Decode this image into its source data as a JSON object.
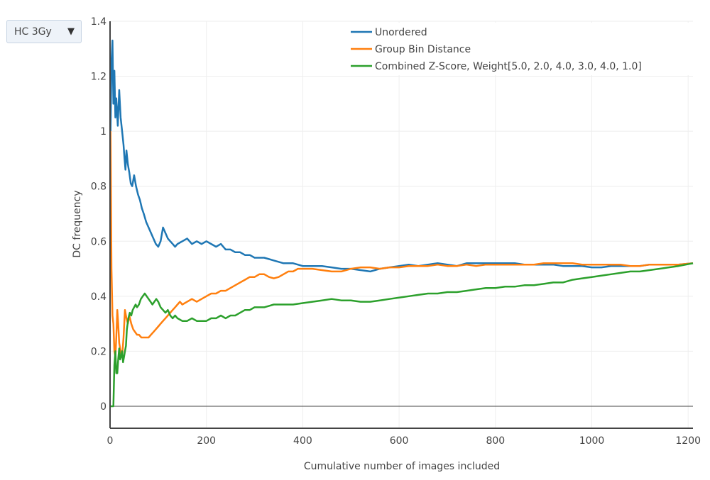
{
  "dropdown": {
    "selected": "HC 3Gy",
    "arrow_icon": "triangle-down-icon"
  },
  "chart_data": {
    "type": "line",
    "title": "",
    "xlabel": "Cumulative number of images included",
    "ylabel": "DC frequency",
    "xlim": [
      0,
      1210
    ],
    "ylim": [
      -0.08,
      1.4
    ],
    "xticks": [
      "0",
      "200",
      "400",
      "600",
      "800",
      "1000",
      "1200"
    ],
    "yticks": [
      "0",
      "0.2",
      "0.4",
      "0.6",
      "0.8",
      "1",
      "1.2",
      "1.4"
    ],
    "grid": true,
    "legend_position": "top-right",
    "series": [
      {
        "name": "Unordered",
        "color": "#1f77b4",
        "points": [
          [
            1,
            1.0
          ],
          [
            3,
            1.25
          ],
          [
            5,
            1.33
          ],
          [
            7,
            1.1
          ],
          [
            9,
            1.22
          ],
          [
            11,
            1.05
          ],
          [
            13,
            1.12
          ],
          [
            16,
            1.02
          ],
          [
            19,
            1.15
          ],
          [
            22,
            1.05
          ],
          [
            25,
            1.0
          ],
          [
            28,
            0.95
          ],
          [
            30,
            0.9
          ],
          [
            32,
            0.86
          ],
          [
            34,
            0.93
          ],
          [
            37,
            0.88
          ],
          [
            40,
            0.85
          ],
          [
            43,
            0.81
          ],
          [
            46,
            0.8
          ],
          [
            50,
            0.84
          ],
          [
            54,
            0.8
          ],
          [
            58,
            0.77
          ],
          [
            62,
            0.75
          ],
          [
            66,
            0.72
          ],
          [
            70,
            0.7
          ],
          [
            75,
            0.67
          ],
          [
            80,
            0.65
          ],
          [
            85,
            0.63
          ],
          [
            90,
            0.61
          ],
          [
            95,
            0.59
          ],
          [
            100,
            0.58
          ],
          [
            105,
            0.6
          ],
          [
            110,
            0.65
          ],
          [
            115,
            0.63
          ],
          [
            120,
            0.61
          ],
          [
            125,
            0.6
          ],
          [
            130,
            0.59
          ],
          [
            135,
            0.58
          ],
          [
            140,
            0.59
          ],
          [
            150,
            0.6
          ],
          [
            160,
            0.61
          ],
          [
            170,
            0.59
          ],
          [
            180,
            0.6
          ],
          [
            190,
            0.59
          ],
          [
            200,
            0.6
          ],
          [
            210,
            0.59
          ],
          [
            220,
            0.58
          ],
          [
            230,
            0.59
          ],
          [
            240,
            0.57
          ],
          [
            250,
            0.57
          ],
          [
            260,
            0.56
          ],
          [
            270,
            0.56
          ],
          [
            280,
            0.55
          ],
          [
            290,
            0.55
          ],
          [
            300,
            0.54
          ],
          [
            320,
            0.54
          ],
          [
            340,
            0.53
          ],
          [
            360,
            0.52
          ],
          [
            380,
            0.52
          ],
          [
            400,
            0.51
          ],
          [
            420,
            0.51
          ],
          [
            440,
            0.51
          ],
          [
            460,
            0.505
          ],
          [
            480,
            0.5
          ],
          [
            500,
            0.5
          ],
          [
            520,
            0.495
          ],
          [
            540,
            0.49
          ],
          [
            560,
            0.5
          ],
          [
            580,
            0.505
          ],
          [
            600,
            0.51
          ],
          [
            620,
            0.515
          ],
          [
            640,
            0.51
          ],
          [
            660,
            0.515
          ],
          [
            680,
            0.52
          ],
          [
            700,
            0.515
          ],
          [
            720,
            0.51
          ],
          [
            740,
            0.52
          ],
          [
            760,
            0.52
          ],
          [
            780,
            0.52
          ],
          [
            800,
            0.52
          ],
          [
            820,
            0.52
          ],
          [
            840,
            0.52
          ],
          [
            860,
            0.515
          ],
          [
            880,
            0.515
          ],
          [
            900,
            0.515
          ],
          [
            920,
            0.515
          ],
          [
            940,
            0.51
          ],
          [
            960,
            0.51
          ],
          [
            980,
            0.51
          ],
          [
            1000,
            0.505
          ],
          [
            1020,
            0.505
          ],
          [
            1040,
            0.51
          ],
          [
            1060,
            0.51
          ],
          [
            1080,
            0.51
          ],
          [
            1100,
            0.51
          ],
          [
            1120,
            0.515
          ],
          [
            1140,
            0.515
          ],
          [
            1160,
            0.515
          ],
          [
            1180,
            0.515
          ],
          [
            1210,
            0.52
          ]
        ]
      },
      {
        "name": "Group Bin Distance",
        "color": "#ff7f0e",
        "points": [
          [
            1,
            1.0
          ],
          [
            3,
            0.5
          ],
          [
            5,
            0.33
          ],
          [
            7,
            0.3
          ],
          [
            9,
            0.2
          ],
          [
            11,
            0.18
          ],
          [
            13,
            0.25
          ],
          [
            15,
            0.35
          ],
          [
            17,
            0.3
          ],
          [
            19,
            0.23
          ],
          [
            22,
            0.2
          ],
          [
            25,
            0.18
          ],
          [
            28,
            0.25
          ],
          [
            31,
            0.35
          ],
          [
            34,
            0.32
          ],
          [
            37,
            0.3
          ],
          [
            40,
            0.33
          ],
          [
            44,
            0.3
          ],
          [
            48,
            0.28
          ],
          [
            52,
            0.27
          ],
          [
            56,
            0.26
          ],
          [
            60,
            0.26
          ],
          [
            65,
            0.25
          ],
          [
            70,
            0.25
          ],
          [
            75,
            0.25
          ],
          [
            80,
            0.25
          ],
          [
            85,
            0.26
          ],
          [
            90,
            0.27
          ],
          [
            95,
            0.28
          ],
          [
            100,
            0.29
          ],
          [
            105,
            0.3
          ],
          [
            110,
            0.31
          ],
          [
            115,
            0.32
          ],
          [
            120,
            0.33
          ],
          [
            125,
            0.34
          ],
          [
            130,
            0.35
          ],
          [
            135,
            0.36
          ],
          [
            140,
            0.37
          ],
          [
            145,
            0.38
          ],
          [
            150,
            0.37
          ],
          [
            160,
            0.38
          ],
          [
            170,
            0.39
          ],
          [
            180,
            0.38
          ],
          [
            190,
            0.39
          ],
          [
            200,
            0.4
          ],
          [
            210,
            0.41
          ],
          [
            220,
            0.41
          ],
          [
            230,
            0.42
          ],
          [
            240,
            0.42
          ],
          [
            250,
            0.43
          ],
          [
            260,
            0.44
          ],
          [
            270,
            0.45
          ],
          [
            280,
            0.46
          ],
          [
            290,
            0.47
          ],
          [
            300,
            0.47
          ],
          [
            310,
            0.48
          ],
          [
            320,
            0.48
          ],
          [
            330,
            0.47
          ],
          [
            340,
            0.465
          ],
          [
            350,
            0.47
          ],
          [
            360,
            0.48
          ],
          [
            370,
            0.49
          ],
          [
            380,
            0.49
          ],
          [
            390,
            0.5
          ],
          [
            400,
            0.5
          ],
          [
            420,
            0.5
          ],
          [
            440,
            0.495
          ],
          [
            460,
            0.49
          ],
          [
            480,
            0.49
          ],
          [
            500,
            0.5
          ],
          [
            520,
            0.505
          ],
          [
            540,
            0.505
          ],
          [
            560,
            0.5
          ],
          [
            580,
            0.505
          ],
          [
            600,
            0.505
          ],
          [
            620,
            0.51
          ],
          [
            640,
            0.51
          ],
          [
            660,
            0.51
          ],
          [
            680,
            0.515
          ],
          [
            700,
            0.51
          ],
          [
            720,
            0.51
          ],
          [
            740,
            0.515
          ],
          [
            760,
            0.51
          ],
          [
            780,
            0.515
          ],
          [
            800,
            0.515
          ],
          [
            820,
            0.515
          ],
          [
            840,
            0.515
          ],
          [
            860,
            0.515
          ],
          [
            880,
            0.515
          ],
          [
            900,
            0.52
          ],
          [
            920,
            0.52
          ],
          [
            940,
            0.52
          ],
          [
            960,
            0.52
          ],
          [
            980,
            0.515
          ],
          [
            1000,
            0.515
          ],
          [
            1020,
            0.515
          ],
          [
            1040,
            0.515
          ],
          [
            1060,
            0.515
          ],
          [
            1080,
            0.51
          ],
          [
            1100,
            0.51
          ],
          [
            1120,
            0.515
          ],
          [
            1140,
            0.515
          ],
          [
            1160,
            0.515
          ],
          [
            1180,
            0.515
          ],
          [
            1210,
            0.52
          ]
        ]
      },
      {
        "name": "Combined Z-Score, Weight[5.0, 2.0, 4.0, 3.0, 4.0, 1.0]",
        "color": "#2ca02c",
        "points": [
          [
            1,
            0.0
          ],
          [
            4,
            0.0
          ],
          [
            7,
            0.0
          ],
          [
            9,
            0.15
          ],
          [
            11,
            0.2
          ],
          [
            13,
            0.12
          ],
          [
            15,
            0.12
          ],
          [
            17,
            0.17
          ],
          [
            19,
            0.21
          ],
          [
            21,
            0.17
          ],
          [
            23,
            0.18
          ],
          [
            25,
            0.2
          ],
          [
            27,
            0.16
          ],
          [
            29,
            0.18
          ],
          [
            31,
            0.2
          ],
          [
            33,
            0.22
          ],
          [
            35,
            0.28
          ],
          [
            38,
            0.32
          ],
          [
            41,
            0.34
          ],
          [
            44,
            0.33
          ],
          [
            47,
            0.35
          ],
          [
            50,
            0.36
          ],
          [
            53,
            0.37
          ],
          [
            56,
            0.36
          ],
          [
            60,
            0.37
          ],
          [
            64,
            0.39
          ],
          [
            68,
            0.4
          ],
          [
            72,
            0.41
          ],
          [
            76,
            0.4
          ],
          [
            80,
            0.39
          ],
          [
            84,
            0.38
          ],
          [
            88,
            0.37
          ],
          [
            92,
            0.38
          ],
          [
            96,
            0.39
          ],
          [
            100,
            0.38
          ],
          [
            105,
            0.36
          ],
          [
            110,
            0.35
          ],
          [
            115,
            0.34
          ],
          [
            120,
            0.35
          ],
          [
            125,
            0.33
          ],
          [
            130,
            0.32
          ],
          [
            135,
            0.33
          ],
          [
            140,
            0.32
          ],
          [
            150,
            0.31
          ],
          [
            160,
            0.31
          ],
          [
            170,
            0.32
          ],
          [
            180,
            0.31
          ],
          [
            190,
            0.31
          ],
          [
            200,
            0.31
          ],
          [
            210,
            0.32
          ],
          [
            220,
            0.32
          ],
          [
            230,
            0.33
          ],
          [
            240,
            0.32
          ],
          [
            250,
            0.33
          ],
          [
            260,
            0.33
          ],
          [
            270,
            0.34
          ],
          [
            280,
            0.35
          ],
          [
            290,
            0.35
          ],
          [
            300,
            0.36
          ],
          [
            320,
            0.36
          ],
          [
            340,
            0.37
          ],
          [
            360,
            0.37
          ],
          [
            380,
            0.37
          ],
          [
            400,
            0.375
          ],
          [
            420,
            0.38
          ],
          [
            440,
            0.385
          ],
          [
            460,
            0.39
          ],
          [
            480,
            0.385
          ],
          [
            500,
            0.385
          ],
          [
            520,
            0.38
          ],
          [
            540,
            0.38
          ],
          [
            560,
            0.385
          ],
          [
            580,
            0.39
          ],
          [
            600,
            0.395
          ],
          [
            620,
            0.4
          ],
          [
            640,
            0.405
          ],
          [
            660,
            0.41
          ],
          [
            680,
            0.41
          ],
          [
            700,
            0.415
          ],
          [
            720,
            0.415
          ],
          [
            740,
            0.42
          ],
          [
            760,
            0.425
          ],
          [
            780,
            0.43
          ],
          [
            800,
            0.43
          ],
          [
            820,
            0.435
          ],
          [
            840,
            0.435
          ],
          [
            860,
            0.44
          ],
          [
            880,
            0.44
          ],
          [
            900,
            0.445
          ],
          [
            920,
            0.45
          ],
          [
            940,
            0.45
          ],
          [
            960,
            0.46
          ],
          [
            980,
            0.465
          ],
          [
            1000,
            0.47
          ],
          [
            1020,
            0.475
          ],
          [
            1040,
            0.48
          ],
          [
            1060,
            0.485
          ],
          [
            1080,
            0.49
          ],
          [
            1100,
            0.49
          ],
          [
            1120,
            0.495
          ],
          [
            1140,
            0.5
          ],
          [
            1160,
            0.505
          ],
          [
            1180,
            0.51
          ],
          [
            1210,
            0.52
          ]
        ]
      }
    ]
  }
}
